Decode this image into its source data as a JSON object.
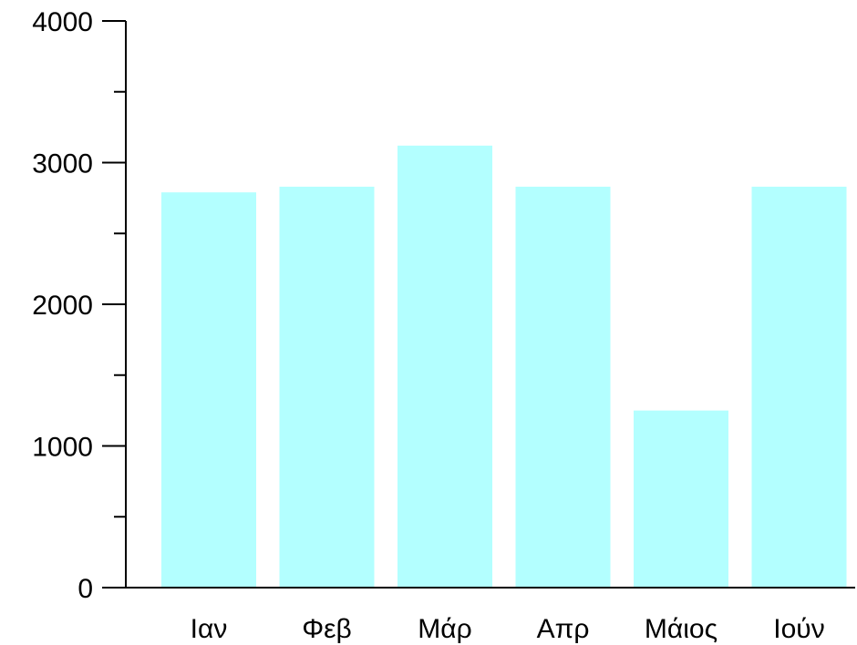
{
  "chart_data": {
    "type": "bar",
    "categories": [
      "Ιαν",
      "Φεβ",
      "Μάρ",
      "Απρ",
      "Μάιος",
      "Ιούν"
    ],
    "values": [
      2790,
      2830,
      3120,
      2830,
      1250,
      2830
    ],
    "ylim": [
      0,
      4000
    ],
    "yticks": [
      0,
      1000,
      2000,
      3000,
      4000
    ],
    "ytick_labels": [
      "0",
      "1000",
      "2000",
      "3000",
      "4000"
    ],
    "minor_tick_step": 500,
    "grid": false,
    "bar_color": "#b3ffff",
    "axis_color": "#000000",
    "title": "",
    "xlabel": "",
    "ylabel": ""
  }
}
